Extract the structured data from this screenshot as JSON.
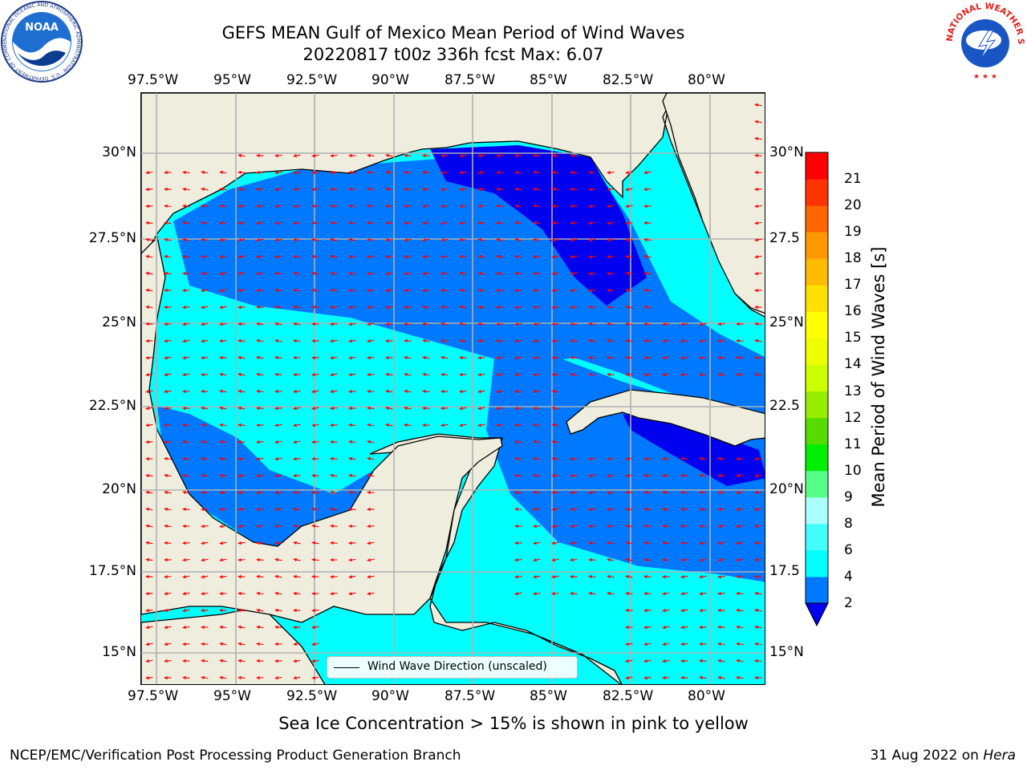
{
  "title": {
    "line1": "GEFS MEAN Gulf of Mexico Mean Period of Wind Waves",
    "line2": "20220817 t00z 336h fcst   Max: 6.07"
  },
  "axes": {
    "lon_ticks": [
      "97.5°W",
      "95°W",
      "92.5°W",
      "90°W",
      "87.5°W",
      "85°W",
      "82.5°W",
      "80°W"
    ],
    "lat_ticks_left": [
      "30°N",
      "27.5°N",
      "25°N",
      "22.5°N",
      "20°N",
      "17.5°N",
      "15°N"
    ],
    "lat_ticks_right": [
      "30°N",
      "27.5",
      "25°N",
      "22.5",
      "20°N",
      "17.5",
      "15°N"
    ]
  },
  "map": {
    "projection": "plate carree",
    "lon_range": [
      -98,
      -78
    ],
    "lat_range": [
      14,
      31.5
    ],
    "grid": true,
    "land_color": "#efedde",
    "ocean_colors": {
      "lt4": "#0078ff",
      "lt2": "#0000ee",
      "ge4": "#00ffff"
    },
    "arrow_color": "#ff0000",
    "arrow_note": "mean direction mostly westward, southwest at some places"
  },
  "legend": {
    "label": "Wind Wave Direction (unscaled)"
  },
  "colorbar": {
    "label": "Mean Period of Wind Waves [s]",
    "ticks": [
      "2",
      "4",
      "6",
      "8",
      "9",
      "10",
      "11",
      "12",
      "13",
      "14",
      "15",
      "16",
      "17",
      "18",
      "19",
      "20",
      "21"
    ],
    "colors": [
      "#0078ff",
      "#00ffff",
      "#44ffff",
      "#aaffff",
      "#55ff88",
      "#00ee00",
      "#55dd00",
      "#99ee00",
      "#ccff00",
      "#eeff00",
      "#ffff00",
      "#ffe000",
      "#ffbb00",
      "#ff9900",
      "#ff6600",
      "#ff3300",
      "#ff0000"
    ],
    "extend_color": "#0000ee"
  },
  "caption": "Sea Ice Concentration > 15% is shown in pink to yellow",
  "footer": {
    "left": "NCEP/EMC/Verification Post Processing Product Generation Branch",
    "date": "31 Aug 2022 on",
    "machine": "Hera"
  },
  "logos": {
    "noaa_text": "NOAA",
    "noaa_ring": "NATIONAL OCEANIC AND ATMOSPHERIC ADMINISTRATION · U.S. DEPARTMENT OF COMMERCE",
    "nws_ring": "NATIONAL WEATHER SERVICE"
  }
}
